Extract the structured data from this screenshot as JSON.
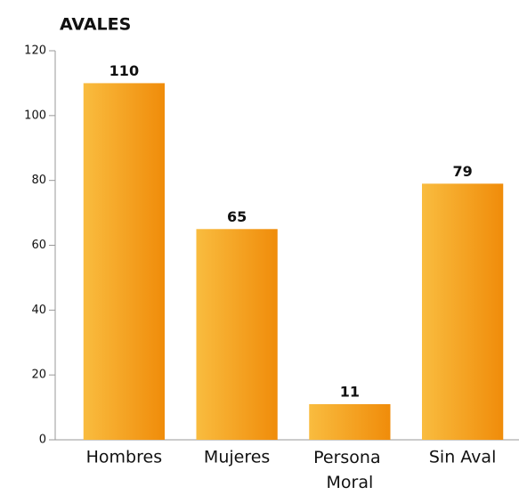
{
  "chart_data": {
    "type": "bar",
    "title": "AVALES",
    "categories": [
      "Hombres",
      "Mujeres",
      "Persona Moral",
      "Sin Aval"
    ],
    "values": [
      110,
      65,
      11,
      79
    ],
    "color": [
      "#f9bc3f",
      "#f08c0a"
    ],
    "ylim": [
      0,
      120
    ],
    "yticks": [
      0,
      20,
      40,
      60,
      80,
      100,
      120
    ]
  }
}
